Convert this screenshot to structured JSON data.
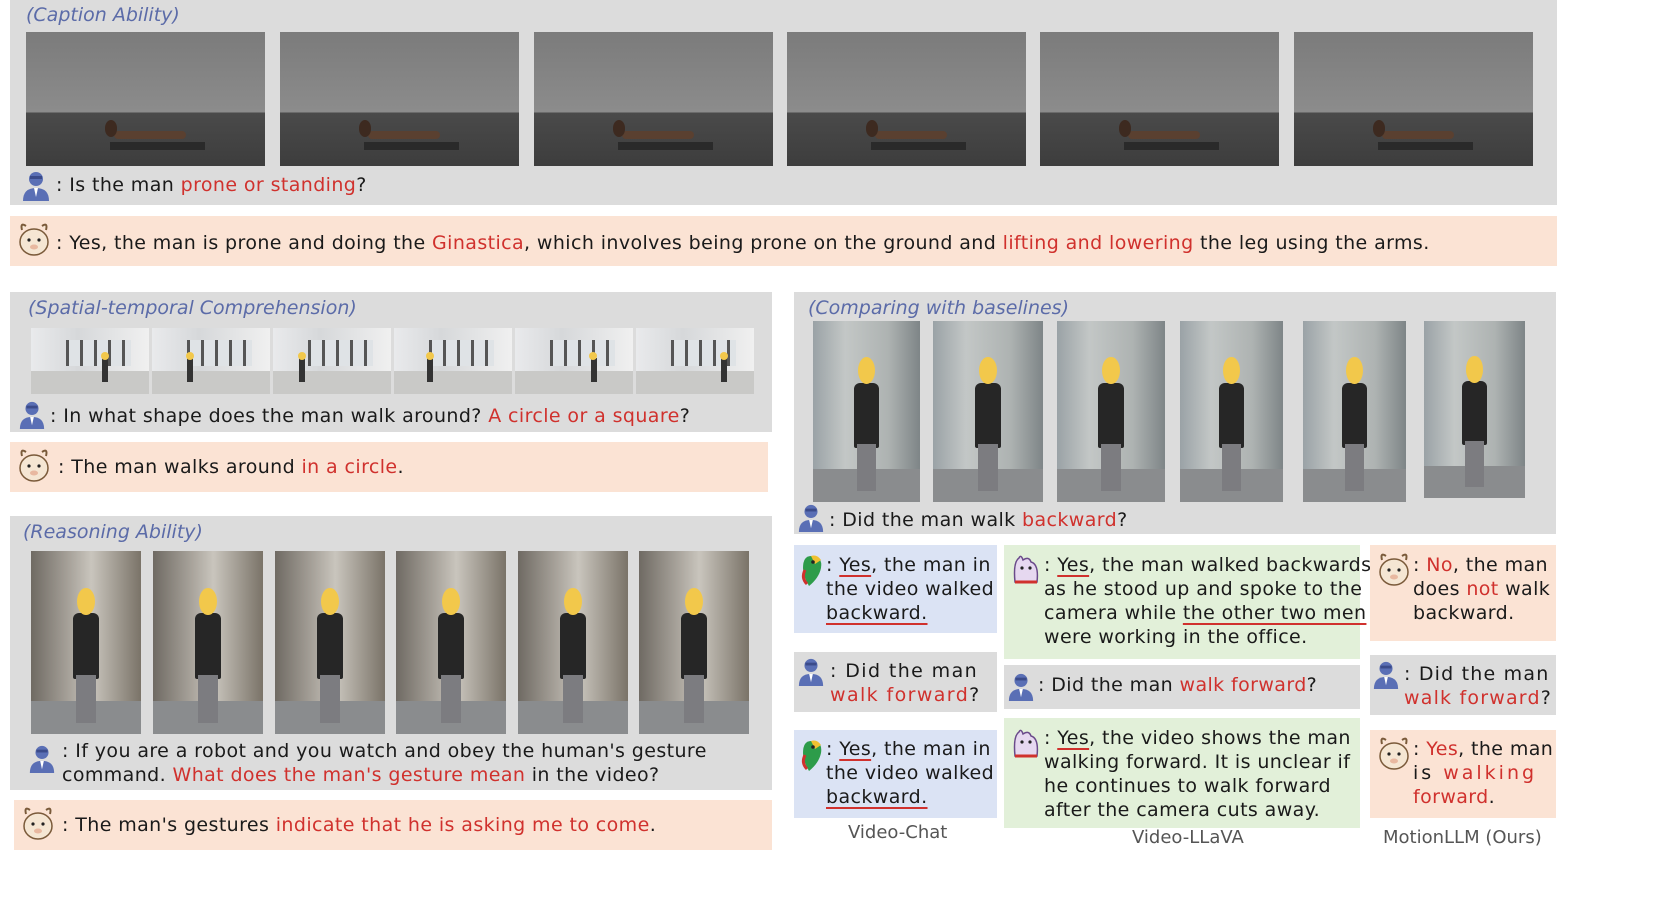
{
  "caption_section": {
    "label": "(Caption Ability)",
    "question": {
      "pre": ": Is the man ",
      "hl": "prone or standing",
      "post": "?"
    },
    "answer": {
      "p1": ": Yes, the man is prone and doing the ",
      "h1": "Ginastica",
      "p2": ", which involves being prone on the ground and ",
      "h2": "lifting and lowering",
      "p3": " the leg using the arms."
    }
  },
  "spatial_section": {
    "label": "(Spatial-temporal Comprehension)",
    "question": {
      "pre": ": In what shape does the man walk around? ",
      "hl": "A circle or a square",
      "post": "?"
    },
    "answer": {
      "pre": ": The man walks around ",
      "hl": "in a circle",
      "post": "."
    }
  },
  "reasoning_section": {
    "label": "(Reasoning Ability)",
    "question": {
      "line1": ": If you are a robot and you watch and obey the human's gesture",
      "line2_pre": "command. ",
      "line2_hl": "What does the man's gesture mean",
      "line2_post": " in the video?"
    },
    "answer": {
      "pre": ": The man's gestures ",
      "hl": "indicate that he is asking me to come",
      "post": "."
    }
  },
  "comparing_section": {
    "label": "(Comparing with baselines)",
    "question": {
      "pre": ": Did the man walk ",
      "hl": "backward",
      "post": "?"
    },
    "videochat": {
      "a1": {
        "l1_yes": "Yes",
        "l1_rest": ", the man in",
        "l2": "the video walked",
        "l3": "backward."
      },
      "q2": {
        "l1": ": Did the man",
        "l2_hl": "walk forward",
        "l2_post": "?"
      },
      "a2": {
        "l1_yes": "Yes",
        "l1_rest": ", the man in",
        "l2": "the video walked",
        "l3": "backward."
      },
      "caption": "Video-Chat"
    },
    "videollava": {
      "a1": {
        "l1_yes": "Yes",
        "l1_rest": ", the man walked backwards",
        "l2": "as he stood up and spoke to the",
        "l3_pre": "camera while ",
        "l3_ul": "the other two men",
        "l4": "were working in the office."
      },
      "q2": {
        "pre": ": Did the man ",
        "hl": "walk forward",
        "post": "?"
      },
      "a2": {
        "l1_yes": "Yes",
        "l1_rest": ", the video shows the man",
        "l2": "walking forward. It is unclear if",
        "l3": "he continues to walk forward",
        "l4": "after the camera cuts away."
      },
      "caption": "Video-LLaVA"
    },
    "motionllm": {
      "a1": {
        "l1_pre": ": ",
        "l1_no": "No",
        "l1_rest": ", the man",
        "l2_pre": "does ",
        "l2_not": "not",
        "l2_post": " walk",
        "l3": "backward."
      },
      "q2": {
        "l1": ": Did the man",
        "l2_hl": "walk forward",
        "l2_post": "?"
      },
      "a2": {
        "l1_pre": ": ",
        "l1_yes": "Yes",
        "l1_rest": ", the man",
        "l2_pre": "is ",
        "l2_hl": "walking",
        "l3_hl": "forward",
        "l3_post": "."
      },
      "caption": "MotionLLM (Ours)"
    }
  },
  "colors": {
    "highlight": "#d0312d",
    "label": "#5b6ba8",
    "answer_bg": "#fbe3d4",
    "panel_bg": "#dcdcdc"
  }
}
